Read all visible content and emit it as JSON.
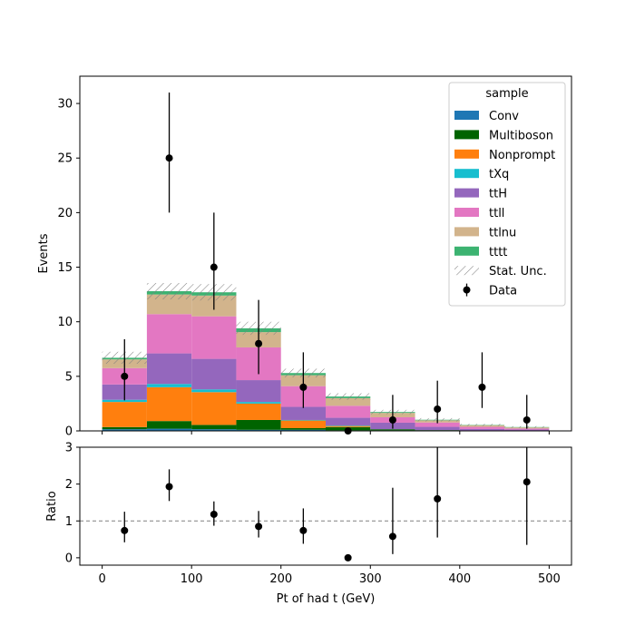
{
  "chart_data": {
    "type": "bar",
    "stacked": true,
    "x_edges": [
      0,
      50,
      100,
      150,
      200,
      250,
      300,
      350,
      400,
      450,
      500
    ],
    "xlabel": "Pt of had t (GeV)",
    "xlim": [
      -25,
      525
    ],
    "xticks": [
      0,
      100,
      200,
      300,
      400,
      500
    ],
    "main": {
      "ylabel": "Events",
      "ylim": [
        0,
        32.5
      ],
      "yticks": [
        0,
        5,
        10,
        15,
        20,
        25,
        30
      ]
    },
    "ratio": {
      "ylabel": "Ratio",
      "ylim": [
        -0.2,
        3
      ],
      "yticks": [
        0,
        1,
        2,
        3
      ],
      "reference": 1,
      "points": [
        {
          "x": 25,
          "y": 0.74,
          "lo": 0.42,
          "hi": 1.25
        },
        {
          "x": 75,
          "y": 1.93,
          "lo": 1.54,
          "hi": 2.4
        },
        {
          "x": 125,
          "y": 1.18,
          "lo": 0.87,
          "hi": 1.53
        },
        {
          "x": 175,
          "y": 0.85,
          "lo": 0.55,
          "hi": 1.27
        },
        {
          "x": 225,
          "y": 0.74,
          "lo": 0.38,
          "hi": 1.34
        },
        {
          "x": 275,
          "y": 0.0,
          "lo": 0.0,
          "hi": 0.0
        },
        {
          "x": 325,
          "y": 0.58,
          "lo": 0.1,
          "hi": 1.9
        },
        {
          "x": 375,
          "y": 1.6,
          "lo": 0.55,
          "hi": 3.05
        },
        {
          "x": 475,
          "y": 2.06,
          "lo": 0.35,
          "hi": 3.05
        }
      ]
    },
    "legend": {
      "title": "sample",
      "position": "top-right"
    },
    "series": [
      {
        "name": "Conv",
        "color": "#1f77b4",
        "values": [
          0.15,
          0.2,
          0.15,
          0.1,
          0.1,
          0.05,
          0.05,
          0.02,
          0.02,
          0.02
        ]
      },
      {
        "name": "Multiboson",
        "color": "#006400",
        "values": [
          0.2,
          0.7,
          0.4,
          0.9,
          0.15,
          0.3,
          0.1,
          0.05,
          0.0,
          0.0
        ]
      },
      {
        "name": "Nonprompt",
        "color": "#ff7f0e",
        "values": [
          2.3,
          3.1,
          3.0,
          1.5,
          0.7,
          0.1,
          0.0,
          0.0,
          0.0,
          0.0
        ]
      },
      {
        "name": "tXq",
        "color": "#17becf",
        "values": [
          0.2,
          0.3,
          0.25,
          0.15,
          0.05,
          0.05,
          0.0,
          0.0,
          0.0,
          0.0
        ]
      },
      {
        "name": "ttH",
        "color": "#9467bd",
        "values": [
          1.4,
          2.8,
          2.8,
          2.0,
          1.2,
          0.7,
          0.6,
          0.3,
          0.15,
          0.1
        ]
      },
      {
        "name": "ttll",
        "color": "#e377c2",
        "values": [
          1.5,
          3.6,
          3.9,
          3.0,
          1.9,
          1.1,
          0.5,
          0.4,
          0.2,
          0.1
        ]
      },
      {
        "name": "ttlnu",
        "color": "#d2b48c",
        "values": [
          0.8,
          1.8,
          1.9,
          1.4,
          1.0,
          0.7,
          0.4,
          0.2,
          0.15,
          0.1
        ]
      },
      {
        "name": "tttt",
        "color": "#3cb371",
        "values": [
          0.15,
          0.3,
          0.3,
          0.35,
          0.2,
          0.15,
          0.08,
          0.05,
          0.03,
          0.03
        ]
      }
    ],
    "stat_unc": {
      "name": "Stat. Unc.",
      "values": [
        0.55,
        0.75,
        0.75,
        0.6,
        0.4,
        0.3,
        0.2,
        0.15,
        0.1,
        0.08
      ]
    },
    "data": {
      "name": "Data",
      "points": [
        {
          "x": 25,
          "y": 5,
          "lo": 2.8,
          "hi": 8.4
        },
        {
          "x": 75,
          "y": 25,
          "lo": 20,
          "hi": 31
        },
        {
          "x": 125,
          "y": 15,
          "lo": 11.1,
          "hi": 20
        },
        {
          "x": 175,
          "y": 8,
          "lo": 5.2,
          "hi": 12
        },
        {
          "x": 225,
          "y": 4,
          "lo": 2.1,
          "hi": 7.2
        },
        {
          "x": 275,
          "y": 0,
          "lo": 0,
          "hi": 0
        },
        {
          "x": 325,
          "y": 1,
          "lo": 0.2,
          "hi": 3.3
        },
        {
          "x": 375,
          "y": 2,
          "lo": 0.7,
          "hi": 4.6
        },
        {
          "x": 425,
          "y": 4,
          "lo": 2.1,
          "hi": 7.2
        },
        {
          "x": 475,
          "y": 1,
          "lo": 0.2,
          "hi": 3.3
        }
      ]
    }
  }
}
